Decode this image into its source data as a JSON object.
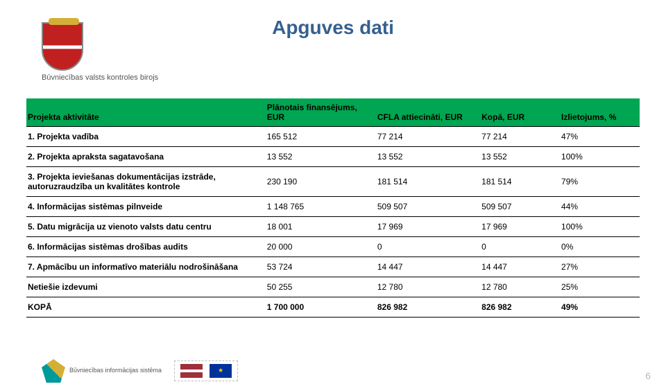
{
  "title": "Apguves dati",
  "logo_caption": "Būvniecības valsts kontroles birojs",
  "page_number": "6",
  "bis_caption": "Būvniecības informācijas\nsistēma",
  "table": {
    "header_bg": "#00a651",
    "columns": [
      {
        "key": "activity",
        "label": "Projekta aktivitāte",
        "green": true
      },
      {
        "key": "planned",
        "label": "Plānotais finansējums, EUR",
        "green": true
      },
      {
        "key": "cfla",
        "label": "CFLA attiecināti, EUR",
        "green": true
      },
      {
        "key": "total",
        "label": "Kopā, EUR",
        "green": true
      },
      {
        "key": "usage",
        "label": "Izlietojums, %",
        "green": true
      }
    ],
    "rows": [
      {
        "activity": "1. Projekta vadība",
        "planned": "165 512",
        "cfla": "77 214",
        "total": "77 214",
        "usage": "47%"
      },
      {
        "activity": "2. Projekta apraksta sagatavošana",
        "planned": "13 552",
        "cfla": "13 552",
        "total": "13 552",
        "usage": "100%"
      },
      {
        "activity": "3. Projekta ieviešanas dokumentācijas izstrāde, autoruzraudzība un kvalitātes kontrole",
        "planned": "230 190",
        "cfla": "181 514",
        "total": "181 514",
        "usage": "79%"
      },
      {
        "activity": "4. Informācijas sistēmas pilnveide",
        "planned": "1 148 765",
        "cfla": "509 507",
        "total": "509 507",
        "usage": "44%"
      },
      {
        "activity": "5. Datu migrācija uz vienoto valsts datu centru",
        "planned": "18 001",
        "cfla": "17 969",
        "total": "17 969",
        "usage": "100%"
      },
      {
        "activity": "6. Informācijas sistēmas drošības audits",
        "planned": "20 000",
        "cfla": "0",
        "total": "0",
        "usage": "0%"
      },
      {
        "activity": "7. Apmācību un informatīvo materiālu nodrošināšana",
        "planned": "53 724",
        "cfla": "14 447",
        "total": "14 447",
        "usage": "27%"
      },
      {
        "activity": "Netiešie izdevumi",
        "planned": "50 255",
        "cfla": "12 780",
        "total": "12 780",
        "usage": "25%"
      }
    ],
    "total_row": {
      "activity": "KOPĀ",
      "planned": "1 700 000",
      "cfla": "826 982",
      "total": "826 982",
      "usage": "49%"
    }
  }
}
